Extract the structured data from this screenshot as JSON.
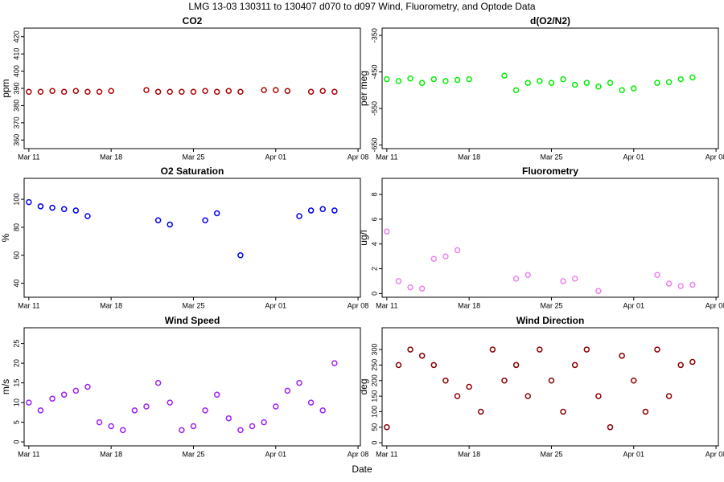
{
  "title": "LMG  13-03    130311 to 130407    d070 to d097   Wind, Fluorometry, and Optode Data",
  "xlabel": "Date",
  "chart_data": [
    {
      "type": "scatter",
      "title": "CO2",
      "ylabel": "ppm",
      "color": "#aa0000",
      "x": [
        70,
        71,
        72,
        73,
        74,
        75,
        76,
        77,
        78,
        79,
        80,
        81,
        82,
        83,
        84,
        85,
        86,
        87,
        88,
        89,
        90,
        91,
        92,
        93,
        94,
        95,
        96
      ],
      "values": [
        388,
        388,
        388.5,
        388,
        388.5,
        388,
        388,
        388.5,
        null,
        null,
        389,
        388,
        388,
        388,
        388,
        388.5,
        388,
        388.5,
        388,
        null,
        389,
        389,
        388.5,
        null,
        388,
        388.5,
        388
      ],
      "xlim": [
        69.6,
        98.2
      ],
      "xticks": [
        {
          "value": 70,
          "label": "Mar 11"
        },
        {
          "value": 77,
          "label": "Mar 18"
        },
        {
          "value": 84,
          "label": "Mar 25"
        },
        {
          "value": 91,
          "label": "Apr 01"
        },
        {
          "value": 98,
          "label": "Apr 08"
        }
      ],
      "ylim": [
        355,
        425
      ],
      "yticks": [
        360,
        370,
        380,
        390,
        400,
        410,
        420
      ]
    },
    {
      "type": "scatter",
      "title": "d(O2/N2)",
      "ylabel": "per meg",
      "color": "#00ee00",
      "x": [
        70,
        71,
        72,
        73,
        74,
        75,
        76,
        77,
        78,
        79,
        80,
        81,
        82,
        83,
        84,
        85,
        86,
        87,
        88,
        89,
        90,
        91,
        92,
        93,
        94,
        95,
        96
      ],
      "values": [
        -470,
        -475,
        -468,
        -480,
        -470,
        -475,
        -472,
        -470,
        null,
        null,
        -460,
        -500,
        -480,
        -475,
        -480,
        -470,
        -485,
        -480,
        -490,
        -480,
        -500,
        -495,
        null,
        -480,
        -478,
        -470,
        -465
      ],
      "xlim": [
        69.6,
        98.2
      ],
      "xticks": [
        {
          "value": 70,
          "label": "Mar 11"
        },
        {
          "value": 77,
          "label": "Mar 18"
        },
        {
          "value": 84,
          "label": "Mar 25"
        },
        {
          "value": 91,
          "label": "Apr 01"
        },
        {
          "value": 98,
          "label": "Apr 08"
        }
      ],
      "ylim": [
        -660,
        -330
      ],
      "yticks": [
        -650,
        -550,
        -450,
        -350
      ]
    },
    {
      "type": "scatter",
      "title": "O2 Saturation",
      "ylabel": "%",
      "color": "#0000ee",
      "x": [
        70,
        71,
        72,
        73,
        74,
        75,
        76,
        77,
        78,
        79,
        80,
        81,
        82,
        83,
        84,
        85,
        86,
        87,
        88,
        89,
        90,
        91,
        92,
        93,
        94,
        95,
        96
      ],
      "values": [
        98,
        95,
        94,
        93,
        92,
        88,
        null,
        null,
        null,
        null,
        null,
        85,
        82,
        null,
        null,
        85,
        90,
        null,
        60,
        null,
        null,
        null,
        null,
        88,
        92,
        93,
        92
      ],
      "xlim": [
        69.6,
        98.2
      ],
      "xticks": [
        {
          "value": 70,
          "label": "Mar 11"
        },
        {
          "value": 77,
          "label": "Mar 18"
        },
        {
          "value": 84,
          "label": "Mar 25"
        },
        {
          "value": 91,
          "label": "Apr 01"
        },
        {
          "value": 98,
          "label": "Apr 08"
        }
      ],
      "ylim": [
        30,
        115
      ],
      "yticks": [
        40,
        60,
        80,
        100
      ]
    },
    {
      "type": "scatter",
      "title": "Fluorometry",
      "ylabel": "ug/l",
      "color": "#ee82ee",
      "x": [
        70,
        71,
        72,
        73,
        74,
        75,
        76,
        77,
        78,
        79,
        80,
        81,
        82,
        83,
        84,
        85,
        86,
        87,
        88,
        89,
        90,
        91,
        92,
        93,
        94,
        95,
        96
      ],
      "values": [
        5,
        1,
        0.5,
        0.4,
        2.8,
        3,
        3.5,
        null,
        null,
        null,
        null,
        1.2,
        1.5,
        null,
        null,
        1,
        1.2,
        null,
        0.2,
        null,
        null,
        null,
        null,
        1.5,
        0.8,
        0.6,
        0.7
      ],
      "xlim": [
        69.6,
        98.2
      ],
      "xticks": [
        {
          "value": 70,
          "label": "Mar 11"
        },
        {
          "value": 77,
          "label": "Mar 18"
        },
        {
          "value": 84,
          "label": "Mar 25"
        },
        {
          "value": 91,
          "label": "Apr 01"
        },
        {
          "value": 98,
          "label": "Apr 08"
        }
      ],
      "ylim": [
        -0.3,
        9.3
      ],
      "yticks": [
        0,
        2,
        4,
        6,
        8
      ]
    },
    {
      "type": "scatter",
      "title": "Wind Speed",
      "ylabel": "m/s",
      "color": "#a020f0",
      "x": [
        70,
        71,
        72,
        73,
        74,
        75,
        76,
        77,
        78,
        79,
        80,
        81,
        82,
        83,
        84,
        85,
        86,
        87,
        88,
        89,
        90,
        91,
        92,
        93,
        94,
        95,
        96
      ],
      "values": [
        10,
        8,
        11,
        12,
        13,
        14,
        5,
        4,
        3,
        8,
        9,
        15,
        10,
        3,
        4,
        8,
        12,
        6,
        3,
        4,
        5,
        9,
        13,
        15,
        10,
        8,
        20
      ],
      "xlim": [
        69.6,
        98.2
      ],
      "xticks": [
        {
          "value": 70,
          "label": "Mar 11"
        },
        {
          "value": 77,
          "label": "Mar 18"
        },
        {
          "value": 84,
          "label": "Mar 25"
        },
        {
          "value": 91,
          "label": "Apr 01"
        },
        {
          "value": 98,
          "label": "Apr 08"
        }
      ],
      "ylim": [
        -1,
        29
      ],
      "yticks": [
        0,
        5,
        10,
        15,
        20,
        25
      ]
    },
    {
      "type": "scatter",
      "title": "Wind Direction",
      "ylabel": "deg",
      "color": "#8b0000",
      "x": [
        70,
        71,
        72,
        73,
        74,
        75,
        76,
        77,
        78,
        79,
        80,
        81,
        82,
        83,
        84,
        85,
        86,
        87,
        88,
        89,
        90,
        91,
        92,
        93,
        94,
        95,
        96
      ],
      "values": [
        50,
        250,
        300,
        280,
        250,
        200,
        150,
        180,
        100,
        300,
        200,
        250,
        150,
        300,
        200,
        100,
        250,
        300,
        150,
        50,
        280,
        200,
        100,
        300,
        150,
        250,
        260
      ],
      "xlim": [
        69.6,
        98.2
      ],
      "xticks": [
        {
          "value": 70,
          "label": "Mar 11"
        },
        {
          "value": 77,
          "label": "Mar 18"
        },
        {
          "value": 84,
          "label": "Mar 25"
        },
        {
          "value": 91,
          "label": "Apr 01"
        },
        {
          "value": 98,
          "label": "Apr 08"
        }
      ],
      "ylim": [
        -10,
        370
      ],
      "yticks": [
        0,
        50,
        100,
        150,
        200,
        250,
        300
      ]
    }
  ]
}
